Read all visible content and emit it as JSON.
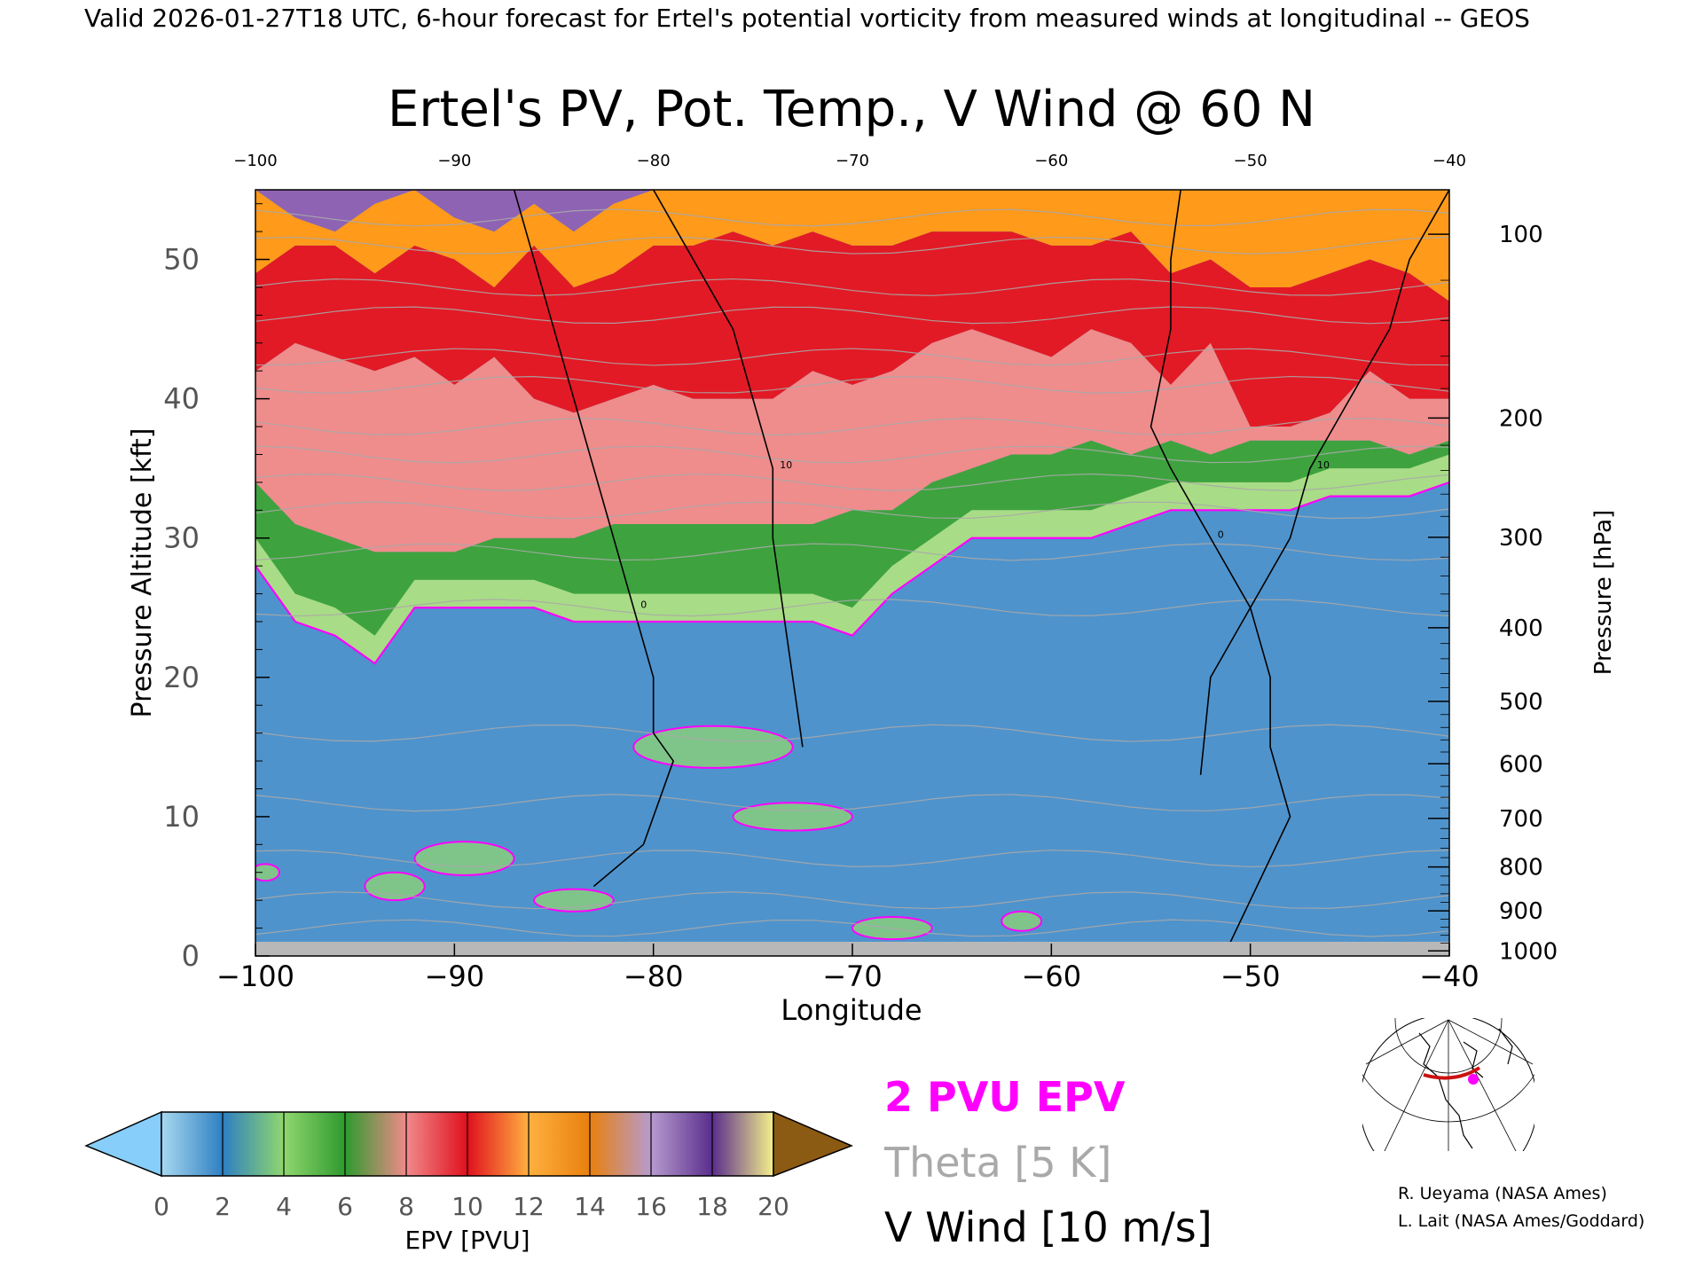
{
  "header": "Valid 2026-01-27T18 UTC, 6-hour forecast for Ertel's potential vorticity from measured winds at longitudinal -- GEOS",
  "chart_data": {
    "type": "heatmap",
    "title": "Ertel's PV, Pot. Temp., V Wind @ 60 N",
    "xlabel": "Longitude",
    "ylabel_left": "Pressure Altitude [kft]",
    "ylabel_right": "Pressure [hPa]",
    "xlim": [
      -100,
      -40
    ],
    "ylim": [
      0,
      55
    ],
    "x_ticks": [
      -100,
      -90,
      -80,
      -70,
      -60,
      -50,
      -40
    ],
    "x_tick_labels": [
      "−100",
      "−90",
      "−80",
      "−70",
      "−60",
      "−50",
      "−40"
    ],
    "top_x_tick_labels": [
      "−100",
      "−90",
      "−80",
      "−70",
      "−60",
      "−50",
      "−40"
    ],
    "y_ticks": [
      0,
      10,
      20,
      30,
      40,
      50
    ],
    "pressure_ticks": [
      {
        "hpa": 100,
        "label": "100"
      },
      {
        "hpa": 200,
        "label": "200"
      },
      {
        "hpa": 300,
        "label": "300"
      },
      {
        "hpa": 400,
        "label": "400"
      },
      {
        "hpa": 500,
        "label": "500"
      },
      {
        "hpa": 600,
        "label": "600"
      },
      {
        "hpa": 700,
        "label": "700"
      },
      {
        "hpa": 800,
        "label": "800"
      },
      {
        "hpa": 900,
        "label": "900"
      },
      {
        "hpa": 1000,
        "label": "1000"
      }
    ],
    "epv_bands": {
      "longitude": [
        -100,
        -98,
        -96,
        -94,
        -92,
        -90,
        -88,
        -86,
        -84,
        -82,
        -80,
        -78,
        -76,
        -74,
        -72,
        -70,
        -68,
        -66,
        -64,
        -62,
        -60,
        -58,
        -56,
        -54,
        -52,
        -50,
        -48,
        -46,
        -44,
        -42,
        -40
      ],
      "two_pvu_kft": [
        28,
        24,
        23,
        21,
        25,
        25,
        25,
        25,
        24,
        24,
        24,
        24,
        24,
        24,
        24,
        23,
        26,
        28,
        30,
        30,
        30,
        30,
        31,
        32,
        32,
        32,
        32,
        33,
        33,
        33,
        34
      ],
      "six_pvu_kft": [
        34,
        31,
        30,
        29,
        29,
        29,
        30,
        30,
        30,
        31,
        31,
        31,
        31,
        31,
        31,
        32,
        32,
        34,
        35,
        36,
        36,
        37,
        36,
        37,
        36,
        37,
        37,
        37,
        37,
        36,
        37
      ],
      "ten_pvu_kft": [
        42,
        44,
        43,
        42,
        43,
        41,
        43,
        40,
        39,
        40,
        41,
        40,
        40,
        40,
        42,
        41,
        42,
        44,
        45,
        44,
        43,
        45,
        44,
        41,
        44,
        38,
        38,
        39,
        42,
        40,
        40
      ],
      "twelve_pvu_kft": [
        49,
        51,
        51,
        49,
        51,
        50,
        48,
        51,
        48,
        49,
        51,
        51,
        52,
        51,
        52,
        51,
        51,
        52,
        52,
        52,
        51,
        51,
        52,
        49,
        50,
        48,
        48,
        49,
        50,
        49,
        47
      ],
      "fourteen_pvu_kft": [
        55,
        53,
        52,
        54,
        55,
        53,
        52,
        54,
        52,
        54,
        55,
        55,
        55,
        55,
        55,
        55,
        55,
        55,
        55,
        55,
        55,
        55,
        55,
        55,
        55,
        55,
        55,
        55,
        55,
        55,
        55
      ]
    },
    "two_pvu_low_level_blobs": [
      {
        "lon": -89.5,
        "kft": 7,
        "dlon": 2.5,
        "dkft": 1.2
      },
      {
        "lon": -93,
        "kft": 5,
        "dlon": 1.5,
        "dkft": 1
      },
      {
        "lon": -77,
        "kft": 15,
        "dlon": 4,
        "dkft": 1.5
      },
      {
        "lon": -73,
        "kft": 10,
        "dlon": 3,
        "dkft": 1
      },
      {
        "lon": -84,
        "kft": 4,
        "dlon": 2,
        "dkft": 0.8
      },
      {
        "lon": -68,
        "kft": 2,
        "dlon": 2,
        "dkft": 0.8
      },
      {
        "lon": -61.5,
        "kft": 2.5,
        "dlon": 1,
        "dkft": 0.7
      },
      {
        "lon": -99.5,
        "kft": 6,
        "dlon": 0.7,
        "dkft": 0.6
      }
    ],
    "theta_levels_K": [
      250,
      260,
      270,
      280,
      290,
      300,
      310,
      320,
      330,
      340,
      350,
      360,
      370,
      380,
      390,
      400,
      410
    ],
    "theta_kft": [
      2,
      4,
      7,
      11,
      16,
      25,
      29,
      32,
      34,
      36,
      38,
      41,
      43,
      46,
      48,
      51,
      53
    ],
    "v_wind": {
      "contour_interval_ms": 10,
      "contours": [
        {
          "label": "0",
          "lon": [
            -87,
            -86,
            -85,
            -84,
            -83,
            -82,
            -81,
            -80,
            -80,
            -79,
            -80.5,
            -83
          ],
          "kft": [
            55,
            50,
            45,
            40,
            35,
            30,
            25,
            20,
            16,
            14,
            8,
            5
          ]
        },
        {
          "label": "10",
          "lon": [
            -80,
            -78,
            -76,
            -75,
            -74,
            -74,
            -73.5,
            -73,
            -72.5
          ],
          "kft": [
            55,
            50,
            45,
            40,
            35,
            30,
            25,
            20,
            15
          ]
        },
        {
          "label": "0",
          "lon": [
            -53.5,
            -54,
            -54,
            -55,
            -54,
            -52,
            -50,
            -49,
            -49,
            -48,
            -51
          ],
          "kft": [
            55,
            50,
            45,
            38,
            35,
            30,
            25,
            20,
            15,
            10,
            1
          ]
        },
        {
          "label": "10",
          "lon": [
            -40,
            -42,
            -43,
            -45,
            -47,
            -48,
            -50,
            -52,
            -52.5
          ],
          "kft": [
            55,
            50,
            45,
            40,
            35,
            30,
            25,
            20,
            13
          ]
        }
      ]
    },
    "colorbar": {
      "label": "EPV [PVU]",
      "ticks": [
        "0",
        "2",
        "4",
        "6",
        "8",
        "10",
        "12",
        "14",
        "16",
        "18",
        "20"
      ],
      "colors": [
        "#87cefa",
        "#2e7fc2",
        "#8fd76e",
        "#2e9a2e",
        "#f08a8a",
        "#e0101e",
        "#ffa500",
        "#e8800e",
        "#b79bcf",
        "#5a2d8c",
        "#f5f08c",
        "#8b5a13"
      ]
    },
    "legend": {
      "pvu": "2 PVU EPV",
      "theta": "Theta [5 K]",
      "vwind": "V Wind [10 m/s]",
      "pvu_color": "#ff00ff",
      "theta_color": "#a9a9a9",
      "vwind_color": "#000000"
    }
  },
  "credits": {
    "line1": "R. Ueyama (NASA Ames)",
    "line2": "L. Lait (NASA Ames/Goddard)"
  }
}
